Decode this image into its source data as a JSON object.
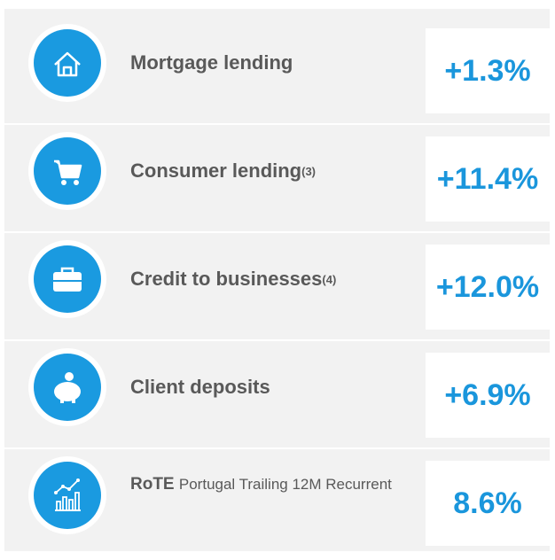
{
  "rows": [
    {
      "label": "Mortgage lending",
      "value": "+1.3%"
    },
    {
      "label": "Consumer lending",
      "note": "(3)",
      "value": "+11.4%"
    },
    {
      "label": "Credit to businesses",
      "note": "(4)",
      "value": "+12.0%"
    },
    {
      "label": "Client deposits",
      "value": "+6.9%"
    },
    {
      "label": "RoTE",
      "detail": "Portugal Trailing 12M Recurrent",
      "value": "8.6%"
    }
  ]
}
